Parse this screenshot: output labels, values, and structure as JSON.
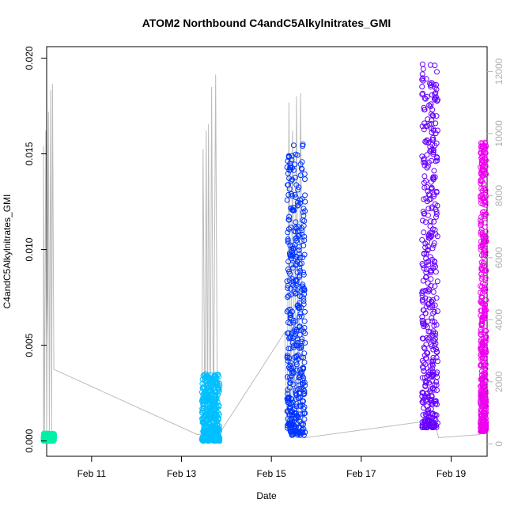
{
  "chart_data": {
    "type": "scatter",
    "title": "ATOM2 Northbound C4andC5Alkylnitrates_GMI",
    "xlabel": "Date",
    "ylabel": "C4andC5Alkylnitrates_GMI",
    "xlim": [
      10.0,
      19.8
    ],
    "ylim": [
      -0.0008,
      0.0206
    ],
    "y_ticks": [
      0.0,
      0.005,
      0.01,
      0.015,
      0.02
    ],
    "y_tick_labels": [
      "0.000",
      "0.005",
      "0.010",
      "0.015",
      "0.020"
    ],
    "x_ticks": [
      11,
      13,
      15,
      17,
      19
    ],
    "x_tick_labels": [
      "Feb 11",
      "Feb 13",
      "Feb 15",
      "Feb 17",
      "Feb 19"
    ],
    "y2_ticks": [
      0,
      2000,
      4000,
      6000,
      8000,
      10000,
      12000
    ],
    "y2_tick_labels": [
      "0",
      "2000",
      "4000",
      "6000",
      "8000",
      "10000",
      "12000"
    ],
    "y2lim": [
      -400,
      12800
    ],
    "grid": false,
    "series": [
      {
        "color": "#00F0A8",
        "x_range": [
          9.93,
          10.17
        ],
        "y_range": [
          0.0,
          0.0004
        ]
      },
      {
        "color": "#00BFFF",
        "x_range": [
          13.45,
          13.85
        ],
        "y_range": [
          0.0,
          0.0035
        ]
      },
      {
        "color": "#0033FF",
        "x_range": [
          15.35,
          15.75
        ],
        "y_range": [
          0.0003,
          0.0155
        ]
      },
      {
        "color": "#6600FF",
        "x_range": [
          18.35,
          18.7
        ],
        "y_range": [
          0.0007,
          0.0197
        ]
      },
      {
        "color": "#EE00EE",
        "x_range": [
          19.65,
          19.78
        ],
        "y_range": [
          0.0005,
          0.0158
        ]
      }
    ],
    "altitude_line": {
      "color": "#bbbbbb",
      "points": [
        [
          9.93,
          300
        ],
        [
          9.93,
          9600
        ],
        [
          9.95,
          300
        ],
        [
          9.98,
          10100
        ],
        [
          10.0,
          300
        ],
        [
          10.04,
          10700
        ],
        [
          10.06,
          300
        ],
        [
          10.09,
          11400
        ],
        [
          10.11,
          300
        ],
        [
          10.13,
          11600
        ],
        [
          10.16,
          2400
        ],
        [
          13.35,
          300
        ],
        [
          13.45,
          300
        ],
        [
          13.48,
          9500
        ],
        [
          13.52,
          300
        ],
        [
          13.55,
          10100
        ],
        [
          13.58,
          300
        ],
        [
          13.6,
          10300
        ],
        [
          13.64,
          300
        ],
        [
          13.67,
          11500
        ],
        [
          13.71,
          300
        ],
        [
          13.76,
          11900
        ],
        [
          13.8,
          200
        ],
        [
          13.83,
          300
        ],
        [
          15.3,
          3600
        ],
        [
          15.35,
          400
        ],
        [
          15.39,
          11000
        ],
        [
          15.43,
          300
        ],
        [
          15.47,
          10100
        ],
        [
          15.51,
          300
        ],
        [
          15.56,
          11200
        ],
        [
          15.6,
          300
        ],
        [
          15.65,
          11300
        ],
        [
          15.7,
          300
        ],
        [
          15.75,
          200
        ],
        [
          18.3,
          700
        ],
        [
          18.37,
          500
        ],
        [
          18.43,
          800
        ],
        [
          18.5,
          600
        ],
        [
          18.57,
          500
        ],
        [
          18.65,
          600
        ],
        [
          18.72,
          200
        ],
        [
          19.65,
          300
        ]
      ]
    }
  }
}
